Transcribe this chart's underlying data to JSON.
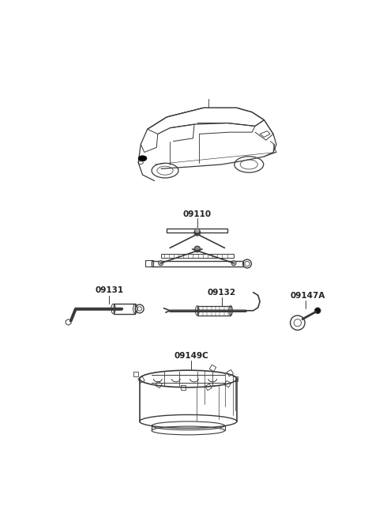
{
  "part_labels": {
    "jack": "09110",
    "wrench_bar": "09131",
    "hook_rod": "09132",
    "nut_tool": "09147A",
    "case": "09149C"
  },
  "bg_color": "#ffffff",
  "line_color": "#3a3a3a",
  "text_color": "#222222",
  "label_fontsize": 7.5,
  "fig_width": 4.8,
  "fig_height": 6.55,
  "dpi": 100
}
